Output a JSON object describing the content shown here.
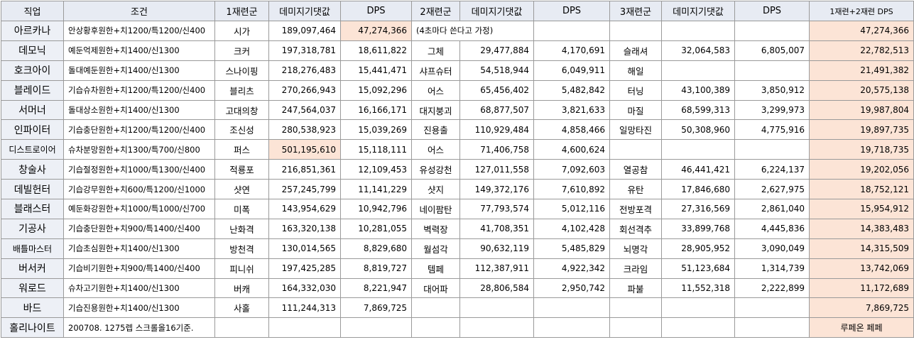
{
  "headers": [
    "직업",
    "조건",
    "1재련군",
    "데미지기댓값",
    "DPS",
    "2재련군",
    "데미지기댓값",
    "DPS",
    "3재련군",
    "데미지기댓값",
    "DPS",
    "1재련+2재련 DPS"
  ],
  "rows": [
    {
      "job": "아르카나",
      "cond": "안상황후원한+치1200/특1200/신400",
      "s1": "시가",
      "d1": "189,097,464",
      "p1": "47,274,366",
      "s2": "(4초마다 쓴다고 가정)",
      "d2": "",
      "p2": "",
      "s3": "",
      "d3": "",
      "p3": "",
      "total": "47,274,366"
    },
    {
      "job": "데모닉",
      "cond": "예둔억제원한+치1400/신1300",
      "s1": "크커",
      "d1": "197,318,781",
      "p1": "18,611,822",
      "s2": "그체",
      "d2": "29,477,884",
      "p2": "4,170,691",
      "s3": "슬래셔",
      "d3": "32,064,583",
      "p3": "6,805,007",
      "total": "22,782,513"
    },
    {
      "job": "호크아이",
      "cond": "돌대예둔원한+치1400/신1300",
      "s1": "스나이핑",
      "d1": "218,276,483",
      "p1": "15,441,471",
      "s2": "샤프슈터",
      "d2": "54,518,944",
      "p2": "6,049,911",
      "s3": "해일",
      "d3": "",
      "p3": "",
      "total": "21,491,382"
    },
    {
      "job": "블레이드",
      "cond": "기습슈차원한+치1200/특1200/신400",
      "s1": "블리츠",
      "d1": "270,266,943",
      "p1": "15,092,296",
      "s2": "어스",
      "d2": "65,456,402",
      "p2": "5,482,842",
      "s3": "터닝",
      "d3": "43,100,389",
      "p3": "3,850,912",
      "total": "20,575,138"
    },
    {
      "job": "서머너",
      "cond": "돌대상소원한+치1400/신1300",
      "s1": "고대의창",
      "d1": "247,564,037",
      "p1": "16,166,171",
      "s2": "대지붕괴",
      "d2": "68,877,507",
      "p2": "3,821,633",
      "s3": "마질",
      "d3": "68,599,313",
      "p3": "3,299,973",
      "total": "19,987,804"
    },
    {
      "job": "인파이터",
      "cond": "기습충단원한+치1200/특1200/신400",
      "s1": "조신성",
      "d1": "280,538,923",
      "p1": "15,039,269",
      "s2": "진용출",
      "d2": "110,929,484",
      "p2": "4,858,466",
      "s3": "일망타진",
      "d3": "50,308,960",
      "p3": "4,775,916",
      "total": "19,897,735"
    },
    {
      "job": "디스트로이어",
      "cond": "슈차분망원한+치1300/특700/신800",
      "s1": "퍼스",
      "d1": "501,195,610",
      "p1": "15,118,111",
      "s2": "어스",
      "d2": "71,406,758",
      "p2": "4,600,624",
      "s3": "",
      "d3": "",
      "p3": "",
      "total": "19,718,735"
    },
    {
      "job": "창술사",
      "cond": "기습절정원한+치1000/특1300/신400",
      "s1": "적룡포",
      "d1": "216,851,361",
      "p1": "12,109,453",
      "s2": "유성강천",
      "d2": "127,011,558",
      "p2": "7,092,603",
      "s3": "열공참",
      "d3": "46,441,421",
      "p3": "6,224,137",
      "total": "19,202,056"
    },
    {
      "job": "데빌헌터",
      "cond": "기습강무원한+치600/특1200/신1000",
      "s1": "샷연",
      "d1": "257,245,799",
      "p1": "11,141,229",
      "s2": "샷지",
      "d2": "149,372,176",
      "p2": "7,610,892",
      "s3": "유탄",
      "d3": "17,846,680",
      "p3": "2,627,975",
      "total": "18,752,121"
    },
    {
      "job": "블래스터",
      "cond": "예둔화강원한+치1000/특1000/신700",
      "s1": "미폭",
      "d1": "143,954,629",
      "p1": "10,942,796",
      "s2": "네이팜탄",
      "d2": "77,793,574",
      "p2": "5,012,116",
      "s3": "전방포격",
      "d3": "27,316,569",
      "p3": "2,861,040",
      "total": "15,954,912"
    },
    {
      "job": "기공사",
      "cond": "기습충단원한+치900/특1400/신400",
      "s1": "난화격",
      "d1": "163,320,138",
      "p1": "10,281,055",
      "s2": "벽력장",
      "d2": "41,708,351",
      "p2": "4,102,428",
      "s3": "회선격추",
      "d3": "33,899,768",
      "p3": "4,445,836",
      "total": "14,383,483"
    },
    {
      "job": "배틀마스터",
      "cond": "기습초심원한+치1400/신1300",
      "s1": "방천격",
      "d1": "130,014,565",
      "p1": "8,829,680",
      "s2": "월섬각",
      "d2": "90,632,119",
      "p2": "5,485,829",
      "s3": "뇌명각",
      "d3": "28,905,952",
      "p3": "3,090,049",
      "total": "14,315,509"
    },
    {
      "job": "버서커",
      "cond": "기습비기원한+치900/특1400/신400",
      "s1": "피니쉬",
      "d1": "197,425,285",
      "p1": "8,819,727",
      "s2": "템페",
      "d2": "112,387,911",
      "p2": "4,922,342",
      "s3": "크라임",
      "d3": "51,123,684",
      "p3": "1,314,739",
      "total": "13,742,069"
    },
    {
      "job": "워로드",
      "cond": "슈차고기원한+치1400/신1300",
      "s1": "버캐",
      "d1": "164,332,030",
      "p1": "8,221,947",
      "s2": "대어파",
      "d2": "28,806,584",
      "p2": "2,950,742",
      "s3": "파불",
      "d3": "11,552,318",
      "p3": "2,222,899",
      "total": "11,172,689"
    },
    {
      "job": "바드",
      "cond": "기습진용원한+치1400/신1300",
      "s1": "사홀",
      "d1": "111,244,313",
      "p1": "7,869,725",
      "s2": "",
      "d2": "",
      "p2": "",
      "s3": "",
      "d3": "",
      "p3": "",
      "total": "7,869,725"
    },
    {
      "job": "홀리나이트",
      "cond": "200708. 1275렙 스크롤올16기준.",
      "s1": "",
      "d1": "",
      "p1": "",
      "s2": "",
      "d2": "",
      "p2": "",
      "s3": "",
      "d3": "",
      "p3": "",
      "total": "루페온 페페"
    }
  ],
  "highlight_color": "#fce4d6",
  "header_color": "#e7ebf3"
}
